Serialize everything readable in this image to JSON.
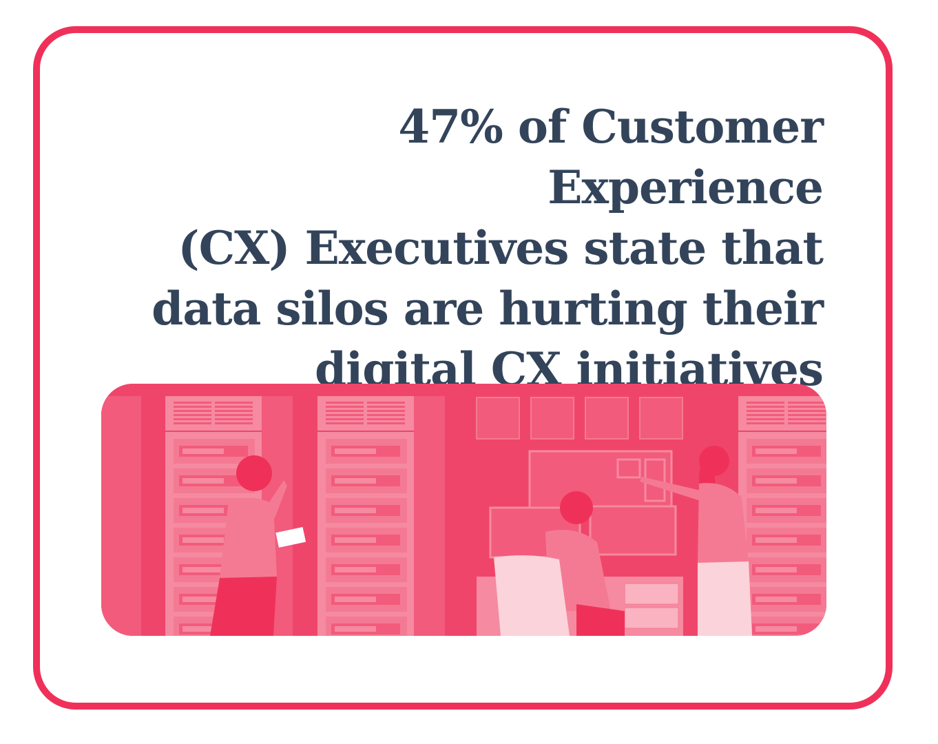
{
  "headline": {
    "lines": [
      "47% of Customer Experience",
      "(CX) Executives state that",
      "data silos are hurting their",
      "digital CX initiatives"
    ]
  },
  "colors": {
    "accent": "#ef3159",
    "text": "#33445a",
    "illustration_bg": "#f0456a"
  },
  "illustration": {
    "icon": "data-center-staff-illustration"
  }
}
